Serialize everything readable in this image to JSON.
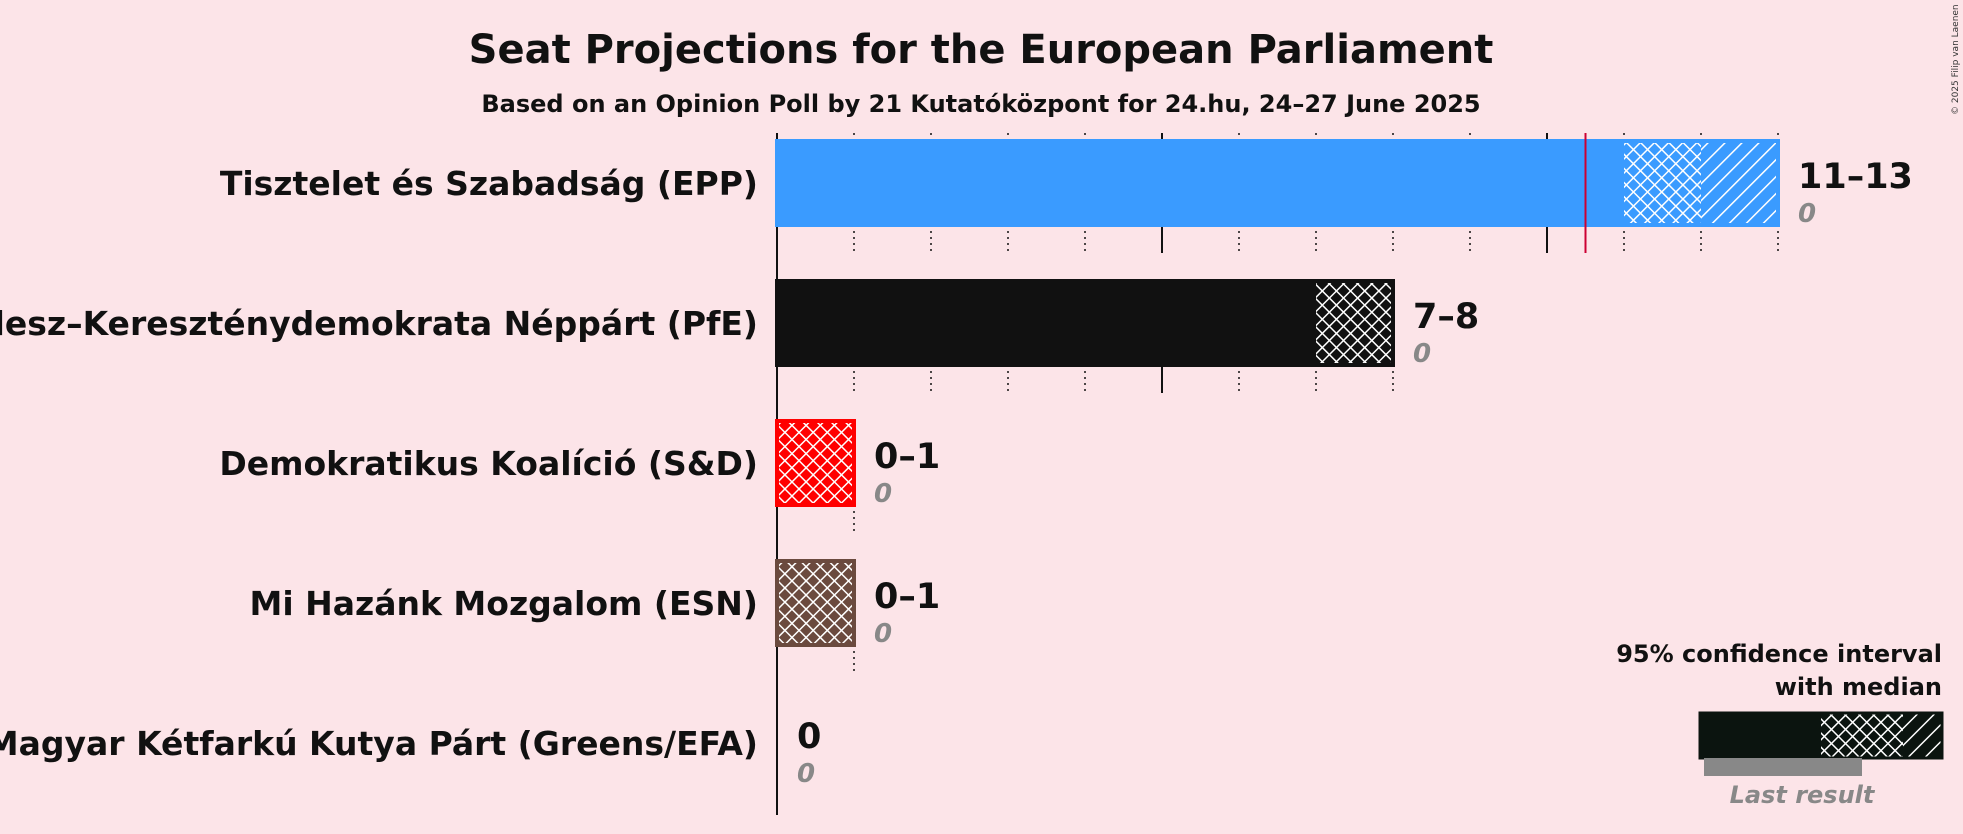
{
  "chart_data": {
    "type": "bar",
    "title": "Seat Projections for the European Parliament",
    "subtitle": "Based on an Opinion Poll by 21 Kutatóközpont for 24.hu, 24–27 June 2025",
    "copyright": "© 2025 Filip van Laenen",
    "majority_line": 10.5,
    "parties": [
      {
        "name": "Tisztelet és Szabadság (EPP)",
        "color": "#3A9BFF",
        "low": 11,
        "median": 12,
        "high": 13,
        "range_label": "11–13",
        "last_result": 0,
        "last_label": "0"
      },
      {
        "name": "Fidesz–Kereszténydemokrata Néppárt (PfE)",
        "color": "#111111",
        "low": 7,
        "median": 8,
        "high": 8,
        "range_label": "7–8",
        "last_result": 0,
        "last_label": "0"
      },
      {
        "name": "Demokratikus Koalíció (S&D)",
        "color": "#FF0000",
        "low": 0,
        "median": 1,
        "high": 1,
        "range_label": "0–1",
        "last_result": 0,
        "last_label": "0"
      },
      {
        "name": "Mi Hazánk Mozgalom (ESN)",
        "color": "#6B4A3E",
        "low": 0,
        "median": 1,
        "high": 1,
        "range_label": "0–1",
        "last_result": 0,
        "last_label": "0"
      },
      {
        "name": "Magyar Kétfarkú Kutya Párt (Greens/EFA)",
        "color": "#888888",
        "low": 0,
        "median": 0,
        "high": 0,
        "range_label": "0",
        "last_result": 0,
        "last_label": "0"
      }
    ],
    "legend": {
      "line1": "95% confidence interval",
      "line2": "with median",
      "last_result": "Last result"
    }
  }
}
